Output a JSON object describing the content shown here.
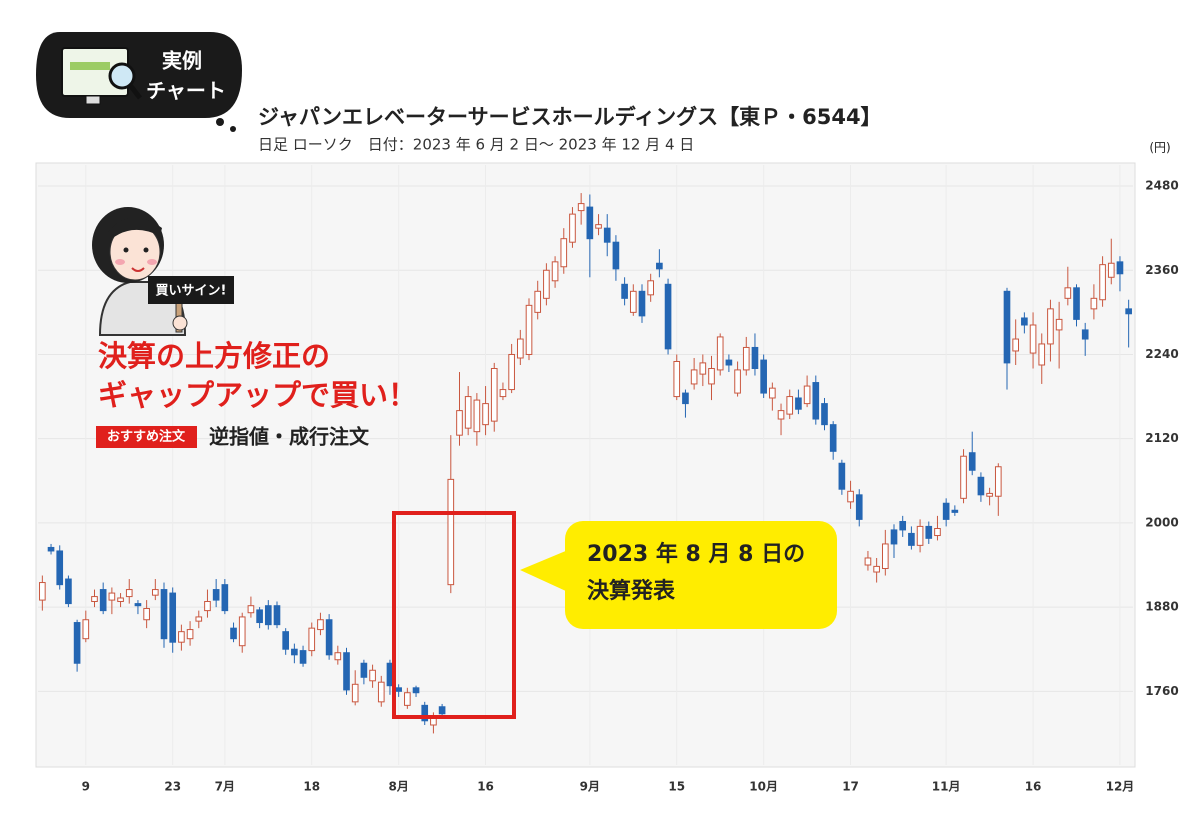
{
  "badge": {
    "lines": [
      "実例",
      "チャート"
    ]
  },
  "chart_data": {
    "type": "candlestick",
    "title": "ジャパンエレベーターサービスホールディングス【東Ｐ・6544】",
    "subtitle": "日足 ローソク　日付：2023 年 6 月 2 日〜 2023 年 12 月 4 日",
    "y_unit": "(円)",
    "categories": [
      null,
      null,
      null,
      null,
      null,
      "9",
      null,
      null,
      null,
      null,
      null,
      null,
      null,
      null,
      null,
      "23",
      null,
      null,
      null,
      null,
      null,
      "7月",
      null,
      null,
      null,
      null,
      null,
      null,
      null,
      null,
      null,
      "18",
      null,
      null,
      null,
      null,
      null,
      null,
      null,
      null,
      null,
      "8月",
      null,
      null,
      null,
      null,
      null,
      null,
      null,
      null,
      null,
      "16",
      null,
      null,
      null,
      null,
      null,
      null,
      null,
      null,
      null,
      null,
      null,
      "9月",
      null,
      null,
      null,
      null,
      null,
      null,
      null,
      null,
      null,
      "15",
      null,
      null,
      null,
      null,
      null,
      null,
      null,
      null,
      null,
      "10月",
      null,
      null,
      null,
      null,
      null,
      null,
      null,
      null,
      null,
      "17",
      null,
      null,
      null,
      null,
      null,
      null,
      null,
      null,
      null,
      null,
      "11月",
      null,
      null,
      null,
      null,
      null,
      null,
      null,
      null,
      null,
      "16",
      null,
      null,
      null,
      null,
      null,
      null,
      null,
      null,
      null,
      "12月",
      null
    ],
    "open": [
      1890,
      1965,
      1960,
      1920,
      1858,
      1835,
      1888,
      1905,
      1890,
      1888,
      1895,
      1885,
      1862,
      1897,
      1905,
      1900,
      1830,
      1835,
      1860,
      1875,
      1905,
      1912,
      1850,
      1825,
      1872,
      1876,
      1882,
      1882,
      1845,
      1820,
      1818,
      1818,
      1848,
      1862,
      1805,
      1815,
      1745,
      1800,
      1775,
      1745,
      1800,
      1765,
      1740,
      1765,
      1740,
      1712,
      1738,
      1912,
      2125,
      2135,
      2130,
      2140,
      2145,
      2180,
      2190,
      2235,
      2240,
      2300,
      2320,
      2345,
      2365,
      2400,
      2445,
      2450,
      2420,
      2420,
      2400,
      2340,
      2300,
      2330,
      2325,
      2370,
      2340,
      2180,
      2185,
      2198,
      2212,
      2198,
      2218,
      2232,
      2185,
      2218,
      2250,
      2232,
      2178,
      2148,
      2155,
      2178,
      2170,
      2200,
      2170,
      2140,
      2085,
      2030,
      2040,
      1940,
      1930,
      1935,
      1990,
      2002,
      1985,
      1968,
      1995,
      1982,
      2028,
      2018,
      2035,
      2100,
      2065,
      2038,
      2038,
      2330,
      2245,
      2292,
      2242,
      2225,
      2255,
      2275,
      2320,
      2335,
      2275,
      2305,
      2318,
      2350,
      2372,
      2305
    ],
    "high": [
      1925,
      1970,
      1968,
      1925,
      1862,
      1875,
      1905,
      1915,
      1908,
      1900,
      1920,
      1890,
      1890,
      1920,
      1915,
      1908,
      1855,
      1860,
      1875,
      1905,
      1920,
      1920,
      1858,
      1872,
      1895,
      1880,
      1890,
      1888,
      1850,
      1828,
      1825,
      1858,
      1872,
      1870,
      1825,
      1822,
      1790,
      1805,
      1798,
      1782,
      1805,
      1770,
      1765,
      1768,
      1745,
      1730,
      1742,
      2125,
      2215,
      2195,
      2185,
      2195,
      2228,
      2200,
      2255,
      2275,
      2320,
      2345,
      2370,
      2380,
      2420,
      2450,
      2470,
      2468,
      2440,
      2440,
      2410,
      2350,
      2340,
      2340,
      2355,
      2390,
      2348,
      2240,
      2190,
      2235,
      2240,
      2238,
      2270,
      2240,
      2230,
      2265,
      2270,
      2240,
      2200,
      2170,
      2190,
      2190,
      2210,
      2210,
      2178,
      2145,
      2090,
      2060,
      2048,
      1960,
      1950,
      1990,
      1998,
      2010,
      1995,
      2005,
      2002,
      2010,
      2035,
      2025,
      2105,
      2130,
      2072,
      2050,
      2085,
      2335,
      2290,
      2300,
      2300,
      2270,
      2318,
      2315,
      2365,
      2340,
      2285,
      2340,
      2380,
      2405,
      2380,
      2318
    ],
    "low": [
      1875,
      1955,
      1905,
      1880,
      1788,
      1830,
      1880,
      1870,
      1870,
      1880,
      1885,
      1870,
      1850,
      1890,
      1822,
      1815,
      1818,
      1825,
      1850,
      1865,
      1880,
      1870,
      1830,
      1815,
      1865,
      1850,
      1848,
      1850,
      1812,
      1800,
      1795,
      1810,
      1840,
      1805,
      1798,
      1755,
      1740,
      1770,
      1765,
      1738,
      1755,
      1752,
      1735,
      1752,
      1712,
      1700,
      1722,
      1900,
      2110,
      2125,
      2110,
      2125,
      2130,
      2175,
      2185,
      2225,
      2232,
      2290,
      2310,
      2335,
      2355,
      2392,
      2425,
      2350,
      2410,
      2380,
      2345,
      2310,
      2295,
      2285,
      2315,
      2350,
      2240,
      2175,
      2150,
      2190,
      2195,
      2175,
      2210,
      2215,
      2180,
      2210,
      2210,
      2178,
      2160,
      2125,
      2148,
      2155,
      2165,
      2140,
      2132,
      2090,
      2040,
      2020,
      1995,
      1932,
      1915,
      1925,
      1950,
      1980,
      1962,
      1958,
      1970,
      1975,
      1995,
      2010,
      2028,
      2068,
      2030,
      2025,
      2010,
      2190,
      2225,
      2270,
      2220,
      2198,
      2230,
      2220,
      2310,
      2280,
      2238,
      2290,
      2308,
      2340,
      2330,
      2250
    ],
    "close": [
      1915,
      1960,
      1912,
      1885,
      1800,
      1862,
      1895,
      1875,
      1900,
      1893,
      1905,
      1882,
      1878,
      1905,
      1835,
      1830,
      1845,
      1848,
      1866,
      1888,
      1890,
      1875,
      1835,
      1866,
      1882,
      1858,
      1855,
      1855,
      1820,
      1812,
      1800,
      1850,
      1862,
      1812,
      1815,
      1762,
      1770,
      1780,
      1790,
      1773,
      1768,
      1760,
      1758,
      1758,
      1718,
      1725,
      1728,
      2062,
      2160,
      2180,
      2175,
      2170,
      2220,
      2190,
      2240,
      2262,
      2310,
      2330,
      2360,
      2372,
      2405,
      2440,
      2455,
      2405,
      2425,
      2400,
      2362,
      2320,
      2330,
      2295,
      2345,
      2362,
      2248,
      2230,
      2170,
      2218,
      2228,
      2220,
      2265,
      2225,
      2218,
      2250,
      2220,
      2185,
      2192,
      2160,
      2180,
      2162,
      2195,
      2148,
      2140,
      2102,
      2048,
      2045,
      2005,
      1950,
      1938,
      1970,
      1970,
      1990,
      1968,
      1995,
      1978,
      1992,
      2005,
      2015,
      2095,
      2075,
      2040,
      2042,
      2080,
      2228,
      2262,
      2282,
      2282,
      2255,
      2305,
      2290,
      2335,
      2290,
      2262,
      2320,
      2368,
      2370,
      2355,
      2298
    ],
    "up_color": "#c9573f",
    "down_color": "#2466b3",
    "ylim": [
      1655,
      2510
    ],
    "yticks": [
      1760,
      1880,
      2000,
      2120,
      2240,
      2360,
      2480
    ],
    "grid": true
  },
  "sign": "買いサイン!",
  "headline": [
    "決算の上方修正の",
    "ギャップアップで買い！"
  ],
  "order": {
    "tag": "おすすめ注文",
    "text": "逆指値・成行注文"
  },
  "callout": [
    "2023 年 8 月 8 日の",
    "決算発表"
  ]
}
